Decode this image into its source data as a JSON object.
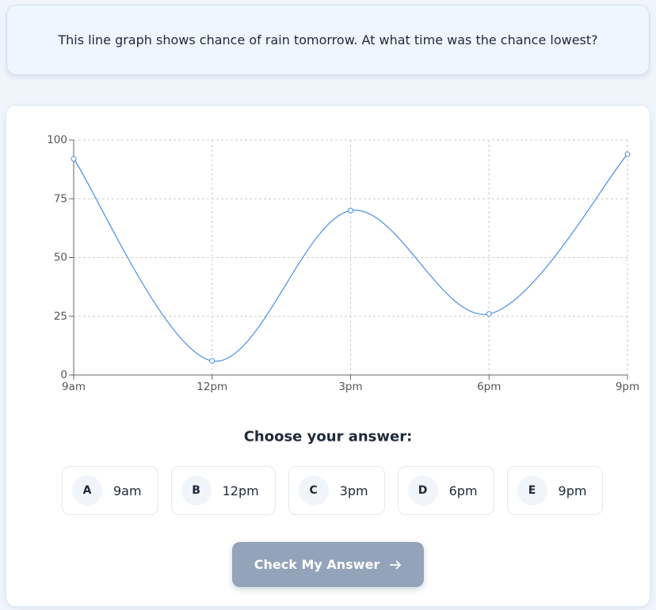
{
  "question": "This line graph shows chance of rain tomorrow. At what time was the chance lowest?",
  "chart_data": {
    "type": "line",
    "categories": [
      "9am",
      "12pm",
      "3pm",
      "6pm",
      "9pm"
    ],
    "values": [
      92,
      6,
      70,
      26,
      94
    ],
    "color": "#4a8ee6",
    "ylim": [
      0,
      100
    ],
    "yticks": [
      0,
      25,
      50,
      75,
      100
    ],
    "grid": true
  },
  "prompt": "Choose your answer:",
  "options": [
    {
      "letter": "A",
      "label": "9am"
    },
    {
      "letter": "B",
      "label": "12pm"
    },
    {
      "letter": "C",
      "label": "3pm"
    },
    {
      "letter": "D",
      "label": "6pm"
    },
    {
      "letter": "E",
      "label": "9pm"
    }
  ],
  "button": "Check My Answer"
}
